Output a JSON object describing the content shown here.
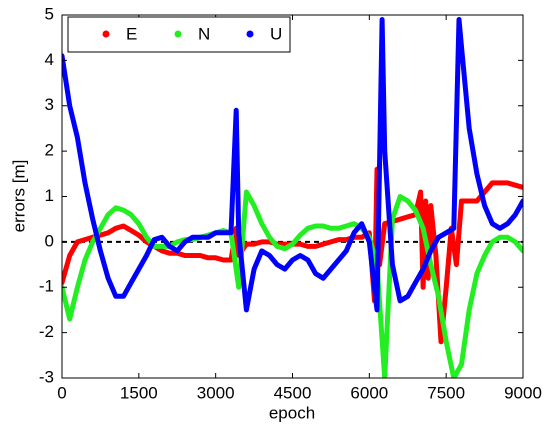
{
  "chart_data": {
    "type": "line",
    "x_label": "epoch",
    "y_label": "errors [m]",
    "xlim": [
      0,
      9000
    ],
    "xticks": [
      0,
      1500,
      3000,
      4500,
      6000,
      7500,
      9000
    ],
    "ylim": [
      -3,
      5
    ],
    "yticks": [
      -3,
      -2,
      -1,
      0,
      1,
      2,
      3,
      4,
      5
    ],
    "hline": 0,
    "legend": "upper left",
    "series": [
      {
        "name": "E",
        "color": "#ff0000",
        "x": [
          0,
          150,
          300,
          450,
          600,
          750,
          900,
          1050,
          1200,
          1350,
          1500,
          1650,
          1800,
          1950,
          2100,
          2250,
          2400,
          2550,
          2700,
          2850,
          3000,
          3150,
          3300,
          3400,
          3450,
          3600,
          3750,
          3900,
          4050,
          4200,
          4350,
          4500,
          4650,
          4800,
          4950,
          5100,
          5250,
          5400,
          5550,
          5700,
          5850,
          6000,
          6100,
          6150,
          6200,
          6300,
          6450,
          6600,
          6750,
          6900,
          7000,
          7050,
          7100,
          7150,
          7200,
          7300,
          7400,
          7500,
          7600,
          7700,
          7800,
          7950,
          8100,
          8250,
          8400,
          8550,
          8700,
          8850,
          9000
        ],
        "values": [
          -0.9,
          -0.3,
          0,
          0.05,
          0.1,
          0.15,
          0.2,
          0.3,
          0.35,
          0.25,
          0.15,
          0,
          -0.1,
          -0.2,
          -0.25,
          -0.25,
          -0.3,
          -0.3,
          -0.3,
          -0.35,
          -0.35,
          -0.4,
          -0.4,
          0.3,
          -0.3,
          -0.05,
          -0.05,
          0,
          0,
          -0.05,
          -0.05,
          -0.05,
          -0.05,
          -0.1,
          -0.1,
          -0.05,
          0,
          0.05,
          0.05,
          0.1,
          0.1,
          0.2,
          -1.3,
          1.6,
          -0.5,
          0.4,
          0.45,
          0.5,
          0.55,
          0.6,
          1.1,
          -1,
          0.9,
          -0.8,
          0.8,
          -0.3,
          -2.2,
          -1,
          0.3,
          -0.5,
          0.9,
          0.9,
          0.9,
          1.1,
          1.3,
          1.3,
          1.3,
          1.25,
          1.2
        ]
      },
      {
        "name": "N",
        "color": "#22ee22",
        "x": [
          0,
          150,
          300,
          450,
          600,
          750,
          900,
          1050,
          1200,
          1350,
          1500,
          1650,
          1800,
          1950,
          2100,
          2250,
          2400,
          2550,
          2700,
          2850,
          3000,
          3150,
          3300,
          3450,
          3600,
          3750,
          3900,
          4050,
          4200,
          4350,
          4500,
          4650,
          4800,
          4950,
          5100,
          5250,
          5400,
          5550,
          5700,
          5850,
          6000,
          6150,
          6300,
          6450,
          6600,
          6750,
          6900,
          7050,
          7200,
          7350,
          7500,
          7650,
          7800,
          7950,
          8100,
          8250,
          8400,
          8550,
          8700,
          8850,
          9000
        ],
        "values": [
          -1.0,
          -1.7,
          -1.0,
          -0.4,
          0.0,
          0.3,
          0.6,
          0.75,
          0.7,
          0.6,
          0.4,
          0.1,
          -0.1,
          -0.1,
          -0.1,
          0,
          0.05,
          0.05,
          0.1,
          0.15,
          0.2,
          0.25,
          0.2,
          -1.0,
          1.1,
          0.8,
          0.4,
          0.1,
          -0.1,
          -0.15,
          -0.05,
          0.15,
          0.3,
          0.35,
          0.35,
          0.3,
          0.3,
          0.35,
          0.4,
          0.3,
          0.1,
          -0.5,
          -3,
          0.5,
          1.0,
          0.9,
          0.7,
          0.3,
          -0.5,
          -1.2,
          -2.2,
          -3,
          -2.7,
          -1.5,
          -0.7,
          -0.3,
          0,
          0.1,
          0.1,
          0,
          -0.2
        ]
      },
      {
        "name": "U",
        "color": "#0000ff",
        "x": [
          0,
          150,
          300,
          450,
          600,
          750,
          900,
          1050,
          1200,
          1350,
          1500,
          1650,
          1800,
          1950,
          2100,
          2250,
          2400,
          2550,
          2700,
          2850,
          3000,
          3150,
          3300,
          3400,
          3450,
          3600,
          3750,
          3900,
          4050,
          4200,
          4350,
          4500,
          4650,
          4800,
          4950,
          5100,
          5250,
          5400,
          5550,
          5700,
          5850,
          6000,
          6150,
          6250,
          6300,
          6450,
          6600,
          6750,
          6900,
          7050,
          7200,
          7350,
          7500,
          7650,
          7750,
          7800,
          7950,
          8100,
          8250,
          8400,
          8550,
          8700,
          8850,
          9000
        ],
        "values": [
          4.1,
          3.0,
          2.3,
          1.3,
          0.5,
          -0.2,
          -0.8,
          -1.2,
          -1.2,
          -0.9,
          -0.6,
          -0.3,
          0.05,
          0.1,
          -0.1,
          -0.2,
          0,
          0.1,
          0.1,
          0.1,
          0.2,
          0.2,
          0.2,
          2.9,
          0.2,
          -1.5,
          -0.6,
          -0.2,
          -0.3,
          -0.5,
          -0.6,
          -0.4,
          -0.3,
          -0.4,
          -0.7,
          -0.8,
          -0.6,
          -0.4,
          -0.2,
          0.2,
          0.4,
          0,
          -1.5,
          4.9,
          2.0,
          -0.5,
          -1.3,
          -1.2,
          -0.9,
          -0.6,
          -0.2,
          0.1,
          0.2,
          0.3,
          4.9,
          4.3,
          2.5,
          1.5,
          0.8,
          0.4,
          0.3,
          0.4,
          0.6,
          0.9
        ]
      }
    ]
  }
}
